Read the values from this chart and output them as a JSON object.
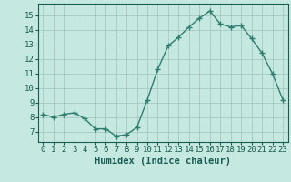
{
  "x": [
    0,
    1,
    2,
    3,
    4,
    5,
    6,
    7,
    8,
    9,
    10,
    11,
    12,
    13,
    14,
    15,
    16,
    17,
    18,
    19,
    20,
    21,
    22,
    23
  ],
  "y": [
    8.2,
    8.0,
    8.2,
    8.3,
    7.9,
    7.2,
    7.2,
    6.7,
    6.8,
    7.3,
    9.2,
    11.3,
    12.9,
    13.5,
    14.2,
    14.8,
    15.3,
    14.4,
    14.2,
    14.3,
    13.4,
    12.4,
    11.0,
    9.2
  ],
  "line_color": "#2e7d6e",
  "marker": "+",
  "marker_size": 4,
  "bg_color": "#c5e8e0",
  "grid_color": "#a8c8c0",
  "xlabel": "Humidex (Indice chaleur)",
  "xlim": [
    -0.5,
    23.5
  ],
  "ylim": [
    6.3,
    15.8
  ],
  "yticks": [
    7,
    8,
    9,
    10,
    11,
    12,
    13,
    14,
    15
  ],
  "tick_color": "#1a5c50",
  "axis_color": "#1a5c50",
  "fontsize_ticks": 6.5,
  "fontsize_xlabel": 7.5,
  "linewidth": 1.0
}
